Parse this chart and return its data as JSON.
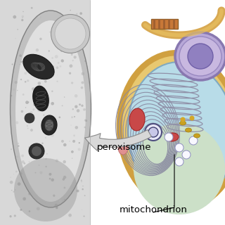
{
  "figsize": [
    3.2,
    3.2
  ],
  "dpi": 100,
  "bg_color": "#ffffff",
  "label_peroxisome": "peroxisome",
  "label_mitochondrion": "mitochondrion",
  "label_fontsize": 9.5,
  "left_bg": "#e8e8e8",
  "left_cell_outer": "#d0d0d0",
  "left_cell_inner": "#f0f0f0",
  "left_organelle_dark": "#303030",
  "left_organelle_mid": "#686868",
  "right_bg": "#ffffff",
  "cell_outer_fill": "#e8c878",
  "cell_outer_edge": "#d4a840",
  "cell_inner_fill": "#b8dce8",
  "cell_inner_edge": "#88aab8",
  "nucleus_fill": "#9bc8dc",
  "nucleus_edge": "#6898b0",
  "nucleolus_fill": "#7090b8",
  "er_color": "#9090a0",
  "mito_fill": "#c87848",
  "mito_edge": "#905030",
  "red_org_fill": "#c84848",
  "red_org_edge": "#a02828",
  "vesicle_fill": "#f0f0ff",
  "vesicle_edge": "#8888bb",
  "pink_fill": "#e8a8a0",
  "gold_fill": "#c8a020",
  "arrow_color": "#c8c8c8",
  "arrow_edge": "#888888",
  "label_line_color": "#000000",
  "perox_circle_fill": "#e0e0e0",
  "perox_circle_edge": "#505050",
  "centriole_fill": "#c8783c",
  "cilium_color": "#d4a050",
  "cell_lower_fill": "#d8e8d0",
  "cell_lower_edge": "#a0b890"
}
